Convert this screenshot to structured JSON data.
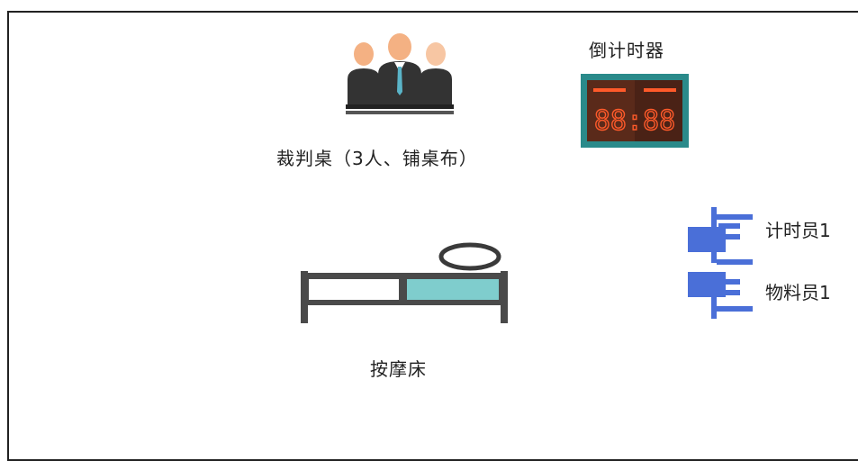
{
  "labels": {
    "judges_table": "裁判桌（3人、铺桌布）",
    "countdown_timer": "倒计时器",
    "massage_bed": "按摩床",
    "timekeeper": "计时员1",
    "materials_staff": "物料员1"
  },
  "timer": {
    "display": "88:88",
    "frame_color": "#2a8a8a",
    "screen_color": "#5a2a1a",
    "digit_color": "#ff5a2a"
  },
  "colors": {
    "judge_skin": "#f4b183",
    "judge_suit": "#333333",
    "judge_tie": "#5ab4c8",
    "bed_frame": "#4a4a4a",
    "bed_pad": "#7fcdcd",
    "staff_blue": "#4a6fd8"
  }
}
